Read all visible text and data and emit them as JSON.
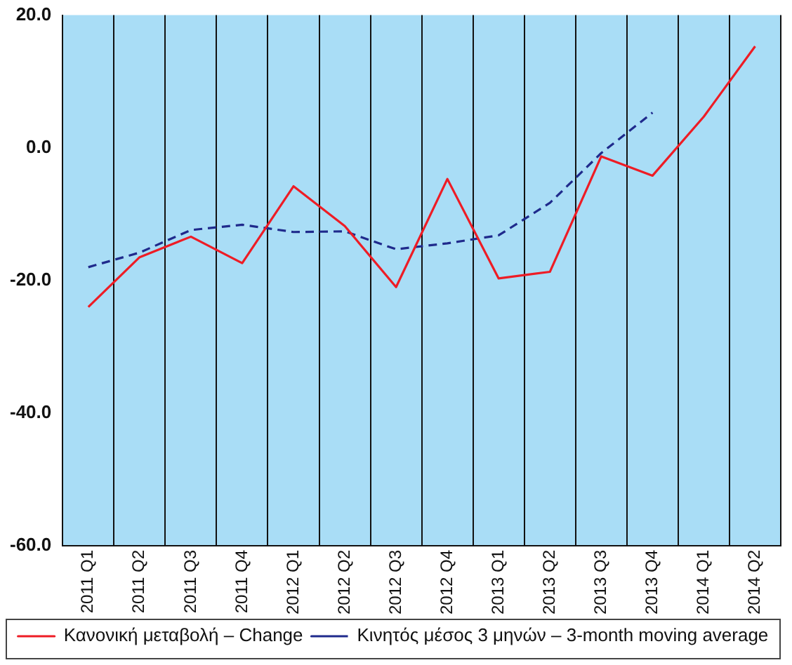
{
  "chart_data": {
    "type": "line",
    "categories": [
      "2011 Q1",
      "2011 Q2",
      "2011 Q3",
      "2011 Q4",
      "2012 Q1",
      "2012 Q2",
      "2012 Q3",
      "2012 Q4",
      "2013 Q1",
      "2013 Q2",
      "2013 Q3",
      "2013 Q4",
      "2014 Q1",
      "2014 Q2"
    ],
    "series": [
      {
        "name": "Κανονική μεταβολή – Change",
        "color": "#ee1c25",
        "values": [
          -24,
          -16.5,
          -13.4,
          -17.4,
          -5.8,
          -11.8,
          -21,
          -4.7,
          -19.7,
          -18.7,
          -1.3,
          -4.2,
          4.7,
          15.3
        ],
        "line_style": "solid"
      },
      {
        "name": "Κινητός μέσος 3 μηνών – 3-month moving average",
        "color": "#1f2a8c",
        "values": [
          -18,
          -15.8,
          -12.4,
          -11.6,
          -12.7,
          -12.6,
          -15.3,
          -14.4,
          -13.2,
          -8.3,
          -0.8,
          5.3,
          null,
          null
        ],
        "line_style": "dashed"
      }
    ],
    "ylim": [
      -60,
      20
    ],
    "yticks": [
      {
        "value": -60,
        "label": "-60.0"
      },
      {
        "value": -40,
        "label": "-40.0"
      },
      {
        "value": -20,
        "label": "-20.0"
      },
      {
        "value": 0,
        "label": "0.0"
      },
      {
        "value": 20,
        "label": "20.0"
      }
    ],
    "grid": "x",
    "legend": "bottom",
    "marker": "none"
  }
}
